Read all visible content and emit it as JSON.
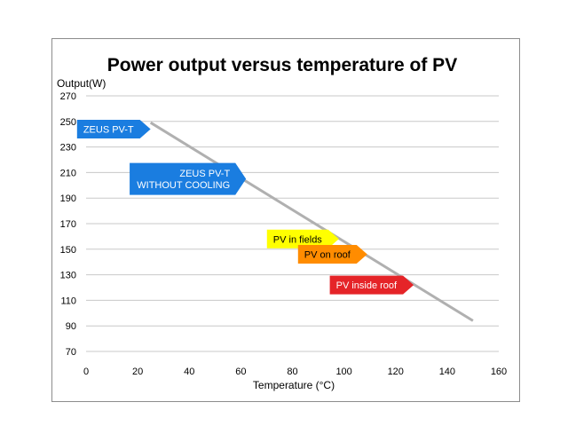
{
  "chart_data": {
    "type": "line",
    "title": "Power output versus temperature of PV",
    "ylabel": "Output(W)",
    "xlabel": "Temperature (°C)",
    "xlim": [
      0,
      160
    ],
    "ylim": [
      70,
      270
    ],
    "x_ticks": [
      0,
      20,
      40,
      60,
      80,
      100,
      120,
      140,
      160
    ],
    "y_ticks": [
      70,
      90,
      110,
      130,
      150,
      170,
      190,
      210,
      230,
      250,
      270
    ],
    "grid": "horizontal",
    "series": [
      {
        "color": "#b0b0b0",
        "points": [
          [
            25,
            249
          ],
          [
            150,
            94
          ]
        ]
      }
    ],
    "annotations": [
      {
        "lines": [
          "ZEUS PV-T"
        ],
        "x": 25,
        "y": 244,
        "color": "#1a7de0",
        "text_color": "#ffffff"
      },
      {
        "lines": [
          "ZEUS PV-T",
          "WITHOUT COOLING"
        ],
        "x": 62,
        "y": 205,
        "color": "#1a7de0",
        "text_color": "#ffffff"
      },
      {
        "lines": [
          "PV in fields"
        ],
        "x": 98,
        "y": 158,
        "color": "#ffff00",
        "text_color": "#000000"
      },
      {
        "lines": [
          "PV on roof"
        ],
        "x": 109,
        "y": 146,
        "color": "#ff8c00",
        "text_color": "#000000"
      },
      {
        "lines": [
          "PV inside roof"
        ],
        "x": 127,
        "y": 122,
        "color": "#e52428",
        "text_color": "#ffffff"
      }
    ]
  }
}
